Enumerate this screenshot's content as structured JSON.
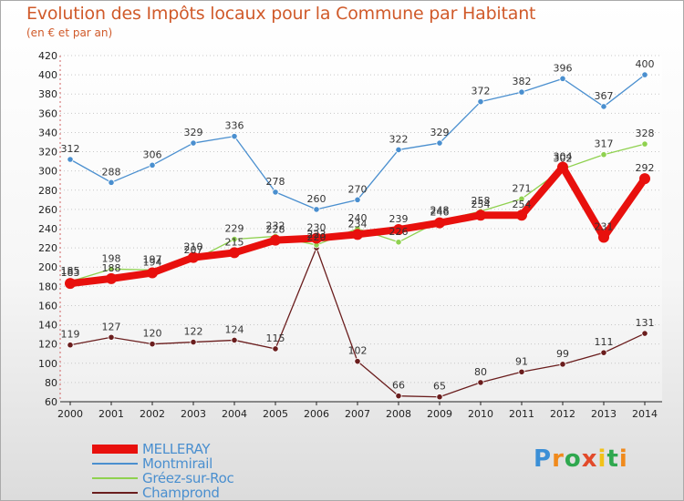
{
  "title": "Evolution des Impôts locaux pour la Commune par Habitant",
  "subtitle": "(en € et par an)",
  "logo": "Proxiti",
  "chart_data": {
    "type": "line",
    "title": "Evolution des Impôts locaux pour la Commune par Habitant",
    "subtitle": "(en € et par an)",
    "xlabel": "",
    "ylabel": "",
    "categories": [
      "2000",
      "2001",
      "2002",
      "2003",
      "2004",
      "2005",
      "2006",
      "2007",
      "2008",
      "2009",
      "2010",
      "2011",
      "2012",
      "2013",
      "2014"
    ],
    "ylim": [
      60,
      420
    ],
    "yticks": [
      60,
      80,
      100,
      120,
      140,
      160,
      180,
      200,
      220,
      240,
      260,
      280,
      300,
      320,
      340,
      360,
      380,
      400,
      420
    ],
    "grid": "horizontal dotted",
    "legend_position": "bottom-left",
    "series": [
      {
        "name": "MELLERAY",
        "color": "#e8100d",
        "values": [
          183,
          188,
          194,
          210,
          215,
          228,
          230,
          234,
          239,
          246,
          254,
          254,
          304,
          231,
          292
        ]
      },
      {
        "name": "Montmirail",
        "color": "#4a8fcf",
        "values": [
          312,
          288,
          306,
          329,
          336,
          278,
          260,
          270,
          322,
          329,
          372,
          382,
          396,
          367,
          400
        ]
      },
      {
        "name": "Gréez-sur-Roc",
        "color": "#8fd14f",
        "values": [
          185,
          198,
          197,
          207,
          229,
          232,
          223,
          240,
          226,
          248,
          258,
          271,
          302,
          317,
          328
        ]
      },
      {
        "name": "Champrond",
        "color": "#6a1d1d",
        "values": [
          119,
          127,
          120,
          122,
          124,
          115,
          220,
          102,
          66,
          65,
          80,
          91,
          99,
          111,
          131
        ]
      }
    ]
  }
}
